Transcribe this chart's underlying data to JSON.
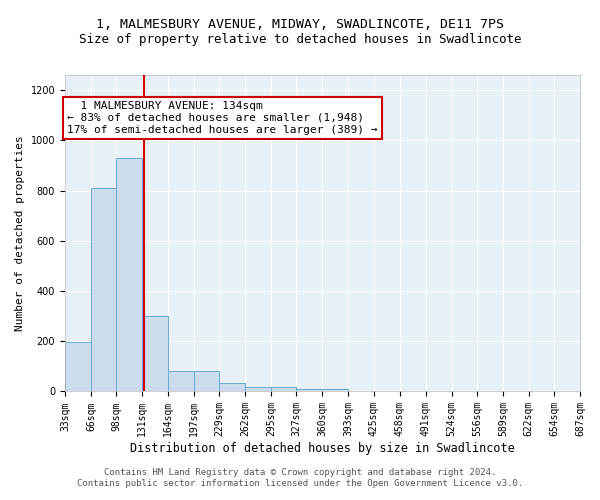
{
  "title": "1, MALMESBURY AVENUE, MIDWAY, SWADLINCOTE, DE11 7PS",
  "subtitle": "Size of property relative to detached houses in Swadlincote",
  "xlabel": "Distribution of detached houses by size in Swadlincote",
  "ylabel": "Number of detached properties",
  "bin_edges": [
    33,
    66,
    98,
    131,
    164,
    197,
    229,
    262,
    295,
    327,
    360,
    393,
    425,
    458,
    491,
    524,
    556,
    589,
    622,
    654,
    687
  ],
  "bar_heights": [
    197,
    812,
    928,
    300,
    82,
    82,
    35,
    18,
    18,
    10,
    10,
    0,
    0,
    0,
    0,
    0,
    0,
    0,
    0,
    0
  ],
  "bar_color": "#ccdcec",
  "bar_edge_color": "#6aaad4",
  "red_line_x": 134,
  "red_line_color": "#cc0000",
  "annotation_text": "  1 MALMESBURY AVENUE: 134sqm\n← 83% of detached houses are smaller (1,948)\n17% of semi-detached houses are larger (389) →",
  "annotation_box_color": "#cc0000",
  "ylim": [
    0,
    1260
  ],
  "yticks": [
    0,
    200,
    400,
    600,
    800,
    1000,
    1200
  ],
  "fig_bg_color": "#ffffff",
  "axes_bg_color": "#e8f0f8",
  "grid_color": "#ffffff",
  "footer_line1": "Contains HM Land Registry data © Crown copyright and database right 2024.",
  "footer_line2": "Contains public sector information licensed under the Open Government Licence v3.0.",
  "title_fontsize": 9.5,
  "subtitle_fontsize": 9,
  "xlabel_fontsize": 8.5,
  "ylabel_fontsize": 8,
  "tick_fontsize": 7,
  "footer_fontsize": 6.5,
  "ann_fontsize": 8
}
